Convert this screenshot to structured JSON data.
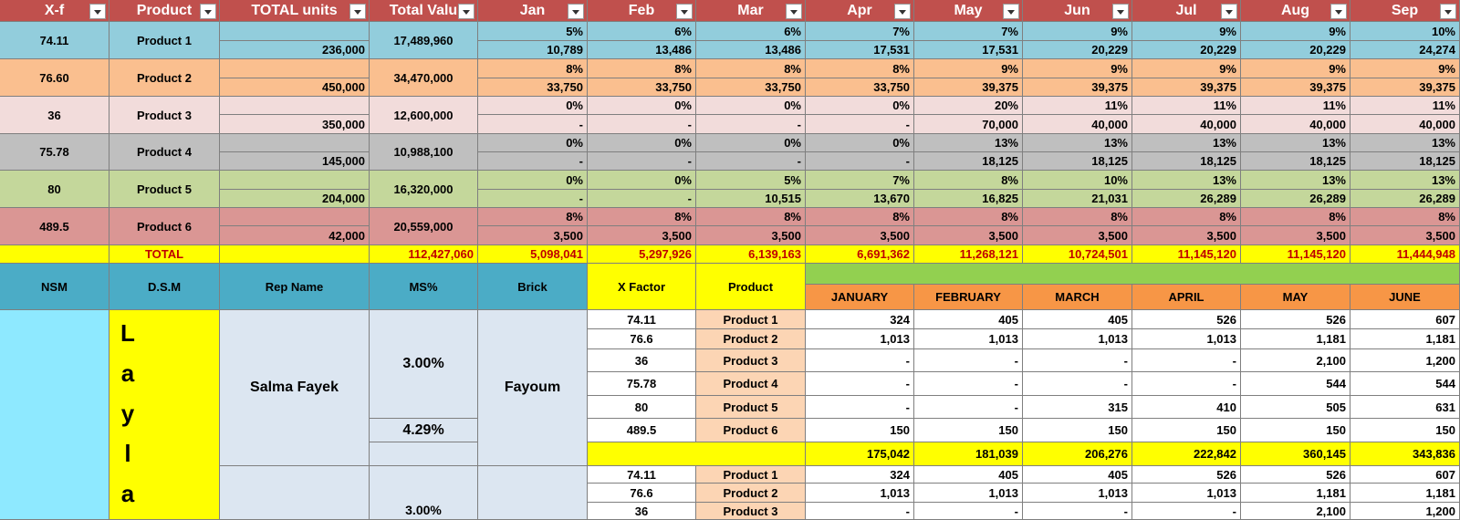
{
  "top_table": {
    "headers": [
      "X-f",
      "Product",
      "TOTAL units",
      "Total Valu",
      "Jan",
      "Feb",
      "Mar",
      "Apr",
      "May",
      "Jun",
      "Jul",
      "Aug",
      "Sep"
    ],
    "rows": [
      {
        "xf": "74.11",
        "product": "Product 1",
        "units": "236,000",
        "value": "17,489,960",
        "pct": [
          "5%",
          "6%",
          "6%",
          "7%",
          "7%",
          "9%",
          "9%",
          "9%",
          "10%"
        ],
        "qty": [
          "10,789",
          "13,486",
          "13,486",
          "17,531",
          "17,531",
          "20,229",
          "20,229",
          "20,229",
          "24,274"
        ]
      },
      {
        "xf": "76.60",
        "product": "Product 2",
        "units": "450,000",
        "value": "34,470,000",
        "pct": [
          "8%",
          "8%",
          "8%",
          "8%",
          "9%",
          "9%",
          "9%",
          "9%",
          "9%"
        ],
        "qty": [
          "33,750",
          "33,750",
          "33,750",
          "33,750",
          "39,375",
          "39,375",
          "39,375",
          "39,375",
          "39,375"
        ]
      },
      {
        "xf": "36",
        "product": "Product 3",
        "units": "350,000",
        "value": "12,600,000",
        "pct": [
          "0%",
          "0%",
          "0%",
          "0%",
          "20%",
          "11%",
          "11%",
          "11%",
          "11%"
        ],
        "qty": [
          "-",
          "-",
          "-",
          "-",
          "70,000",
          "40,000",
          "40,000",
          "40,000",
          "40,000"
        ]
      },
      {
        "xf": "75.78",
        "product": "Product 4",
        "units": "145,000",
        "value": "10,988,100",
        "pct": [
          "0%",
          "0%",
          "0%",
          "0%",
          "13%",
          "13%",
          "13%",
          "13%",
          "13%"
        ],
        "qty": [
          "-",
          "-",
          "-",
          "-",
          "18,125",
          "18,125",
          "18,125",
          "18,125",
          "18,125"
        ]
      },
      {
        "xf": "80",
        "product": "Product 5",
        "units": "204,000",
        "value": "16,320,000",
        "pct": [
          "0%",
          "0%",
          "5%",
          "7%",
          "8%",
          "10%",
          "13%",
          "13%",
          "13%"
        ],
        "qty": [
          "-",
          "-",
          "10,515",
          "13,670",
          "16,825",
          "21,031",
          "26,289",
          "26,289",
          "26,289"
        ]
      },
      {
        "xf": "489.5",
        "product": "Product 6",
        "units": "42,000",
        "value": "20,559,000",
        "pct": [
          "8%",
          "8%",
          "8%",
          "8%",
          "8%",
          "8%",
          "8%",
          "8%",
          "8%"
        ],
        "qty": [
          "3,500",
          "3,500",
          "3,500",
          "3,500",
          "3,500",
          "3,500",
          "3,500",
          "3,500",
          "3,500"
        ]
      }
    ],
    "total": {
      "label": "TOTAL",
      "value": "112,427,060",
      "months": [
        "5,098,041",
        "5,297,926",
        "6,139,163",
        "6,691,362",
        "11,268,121",
        "10,724,501",
        "11,145,120",
        "11,145,120",
        "11,444,948"
      ]
    }
  },
  "bottom_table": {
    "headers": [
      "NSM",
      "D.S.M",
      "Rep Name",
      "MS%",
      "Brick",
      "X Factor",
      "Product"
    ],
    "months": [
      "JANUARY",
      "FEBRUARY",
      "MARCH",
      "APRIL",
      "MAY",
      "JUNE"
    ],
    "dsm": "Layla",
    "rep": "Salma Fayek",
    "ms": [
      "3.00%",
      "4.29%"
    ],
    "brick": "Fayoum",
    "rows": [
      {
        "xf": "74.11",
        "product": "Product 1",
        "values": [
          "324",
          "405",
          "405",
          "526",
          "526",
          "607"
        ]
      },
      {
        "xf": "76.6",
        "product": "Product 2",
        "values": [
          "1,013",
          "1,013",
          "1,013",
          "1,013",
          "1,181",
          "1,181"
        ]
      },
      {
        "xf": "36",
        "product": "Product 3",
        "values": [
          "-",
          "-",
          "-",
          "-",
          "2,100",
          "1,200"
        ]
      },
      {
        "xf": "75.78",
        "product": "Product 4",
        "values": [
          "-",
          "-",
          "-",
          "-",
          "544",
          "544"
        ]
      },
      {
        "xf": "80",
        "product": "Product 5",
        "values": [
          "-",
          "-",
          "315",
          "410",
          "505",
          "631"
        ]
      },
      {
        "xf": "489.5",
        "product": "Product 6",
        "values": [
          "150",
          "150",
          "150",
          "150",
          "150",
          "150"
        ]
      }
    ],
    "total": [
      "175,042",
      "181,039",
      "206,276",
      "222,842",
      "360,145",
      "343,836"
    ],
    "ms2": "3.00%",
    "rows2": [
      {
        "xf": "74.11",
        "product": "Product 1",
        "values": [
          "324",
          "405",
          "405",
          "526",
          "526",
          "607"
        ]
      },
      {
        "xf": "76.6",
        "product": "Product 2",
        "values": [
          "1,013",
          "1,013",
          "1,013",
          "1,013",
          "1,181",
          "1,181"
        ]
      },
      {
        "xf": "36",
        "product": "Product 3",
        "values": [
          "-",
          "-",
          "-",
          "-",
          "2,100",
          "1,200"
        ]
      }
    ]
  }
}
